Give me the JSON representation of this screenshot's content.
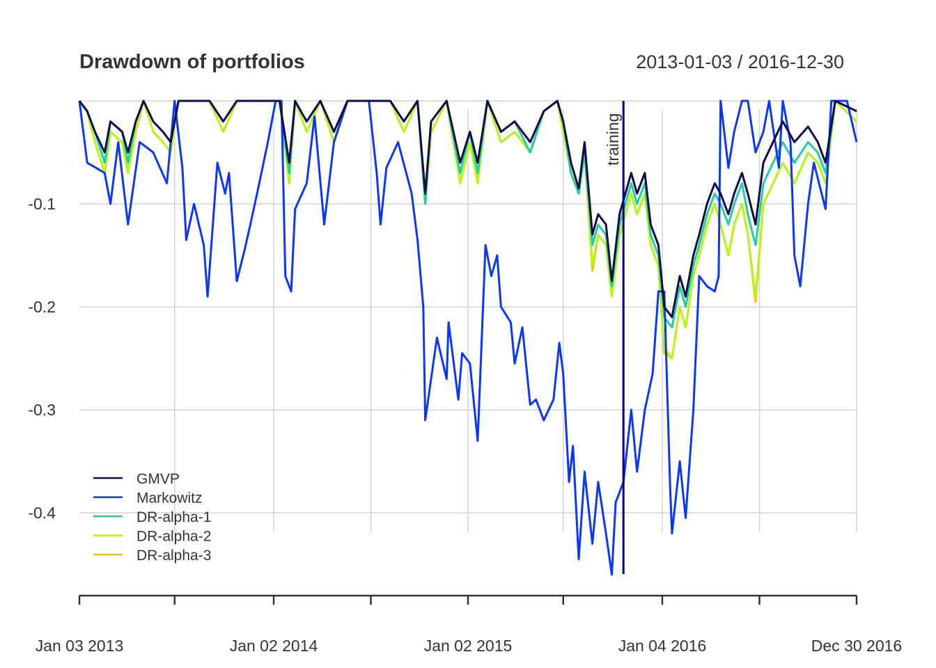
{
  "chart_data": {
    "type": "line",
    "title": "Drawdown of portfolios",
    "date_range": "2013-01-03 / 2016-12-30",
    "xlim": [
      2013.0,
      2017.0
    ],
    "ylim": [
      -0.46,
      0
    ],
    "y_ticks": [
      -0.1,
      -0.2,
      -0.3,
      -0.4
    ],
    "y_tick_labels": [
      "-0.1",
      "-0.2",
      "-0.3",
      "-0.4"
    ],
    "x_ticks": [
      2013.0,
      2014.0,
      2015.0,
      2016.0,
      2017.0
    ],
    "x_tick_labels": [
      "Jan 03 2013",
      "Jan 02 2014",
      "Jan 02 2015",
      "Jan 04 2016",
      "Dec 30 2016"
    ],
    "x_minor_ticks": [
      2013.49,
      2014.5,
      2015.49,
      2016.5
    ],
    "grid": true,
    "legend_position": "bottom-left",
    "annotation": {
      "label": "training",
      "x": 2015.8
    },
    "x_shared": [
      2013.0,
      2013.04,
      2013.08,
      2013.13,
      2013.16,
      2013.22,
      2013.25,
      2013.29,
      2013.33,
      2013.38,
      2013.43,
      2013.47,
      2013.51,
      2013.67,
      2013.74,
      2013.81,
      2014.03,
      2014.08,
      2014.11,
      2014.17,
      2014.24,
      2014.31,
      2014.38,
      2014.6,
      2014.67,
      2014.74,
      2014.78,
      2014.81,
      2014.89,
      2014.96,
      2015.01,
      2015.05,
      2015.1,
      2015.17,
      2015.24,
      2015.32,
      2015.39,
      2015.46,
      2015.49,
      2015.53,
      2015.57,
      2015.6,
      2015.64,
      2015.67,
      2015.71,
      2015.74,
      2015.78,
      2015.84,
      2015.87,
      2015.91,
      2015.94,
      2015.98,
      2016.01,
      2016.05,
      2016.09,
      2016.12,
      2016.16,
      2016.19,
      2016.23,
      2016.27,
      2016.3,
      2016.34,
      2016.37,
      2016.41,
      2016.44,
      2016.48,
      2016.52,
      2016.57,
      2016.62,
      2016.68,
      2016.75,
      2016.8,
      2016.84,
      2016.89,
      2017.0
    ],
    "series": [
      {
        "name": "DR-alpha-3",
        "color": "#f5c400",
        "values": [
          0,
          -0.01,
          -0.04,
          -0.07,
          -0.03,
          -0.04,
          -0.07,
          -0.03,
          0,
          -0.03,
          -0.04,
          -0.05,
          0,
          0,
          -0.03,
          0,
          0,
          -0.08,
          0,
          -0.03,
          0,
          -0.04,
          0,
          0,
          -0.03,
          0,
          -0.1,
          -0.03,
          0,
          -0.08,
          -0.04,
          -0.08,
          0,
          -0.04,
          -0.03,
          -0.05,
          -0.01,
          0,
          -0.03,
          -0.07,
          -0.09,
          -0.05,
          -0.165,
          -0.13,
          -0.14,
          -0.19,
          -0.13,
          -0.09,
          -0.11,
          -0.09,
          -0.14,
          -0.16,
          -0.245,
          -0.25,
          -0.2,
          -0.22,
          -0.17,
          -0.15,
          -0.12,
          -0.1,
          -0.12,
          -0.15,
          -0.12,
          -0.1,
          -0.13,
          -0.195,
          -0.1,
          -0.08,
          -0.06,
          -0.08,
          -0.05,
          -0.06,
          -0.08,
          0,
          -0.02
        ]
      },
      {
        "name": "DR-alpha-2",
        "color": "#b8f516",
        "values": [
          0,
          -0.01,
          -0.04,
          -0.07,
          -0.03,
          -0.04,
          -0.07,
          -0.03,
          0,
          -0.03,
          -0.04,
          -0.05,
          0,
          0,
          -0.03,
          0,
          0,
          -0.08,
          0,
          -0.03,
          0,
          -0.04,
          0,
          0,
          -0.03,
          0,
          -0.1,
          -0.03,
          0,
          -0.08,
          -0.04,
          -0.08,
          0,
          -0.04,
          -0.03,
          -0.05,
          -0.01,
          0,
          -0.03,
          -0.07,
          -0.09,
          -0.05,
          -0.16,
          -0.13,
          -0.14,
          -0.19,
          -0.13,
          -0.09,
          -0.11,
          -0.09,
          -0.14,
          -0.16,
          -0.24,
          -0.25,
          -0.2,
          -0.22,
          -0.17,
          -0.15,
          -0.12,
          -0.1,
          -0.12,
          -0.15,
          -0.12,
          -0.1,
          -0.13,
          -0.19,
          -0.1,
          -0.08,
          -0.06,
          -0.08,
          -0.05,
          -0.06,
          -0.08,
          0,
          -0.02
        ]
      },
      {
        "name": "DR-alpha-1",
        "color": "#1ecfa0",
        "values": [
          0,
          -0.01,
          -0.03,
          -0.06,
          -0.02,
          -0.03,
          -0.06,
          -0.02,
          0,
          -0.02,
          -0.03,
          -0.04,
          0,
          0,
          -0.02,
          0,
          0,
          -0.07,
          0,
          -0.02,
          0,
          -0.03,
          0,
          0,
          -0.02,
          0,
          -0.1,
          -0.02,
          0,
          -0.07,
          -0.03,
          -0.07,
          0,
          -0.03,
          -0.02,
          -0.05,
          -0.01,
          0,
          -0.02,
          -0.07,
          -0.09,
          -0.05,
          -0.14,
          -0.12,
          -0.13,
          -0.18,
          -0.12,
          -0.08,
          -0.1,
          -0.08,
          -0.13,
          -0.15,
          -0.21,
          -0.22,
          -0.18,
          -0.2,
          -0.16,
          -0.14,
          -0.11,
          -0.09,
          -0.1,
          -0.12,
          -0.1,
          -0.08,
          -0.11,
          -0.14,
          -0.08,
          -0.06,
          -0.04,
          -0.06,
          -0.04,
          -0.05,
          -0.07,
          0,
          -0.01
        ]
      },
      {
        "name": "Markowitz",
        "color": "#0a35ff",
        "x": [
          2013.0,
          2013.04,
          2013.13,
          2013.16,
          2013.2,
          2013.25,
          2013.31,
          2013.38,
          2013.45,
          2013.49,
          2013.53,
          2013.55,
          2013.59,
          2013.64,
          2013.66,
          2013.71,
          2013.75,
          2013.77,
          2013.81,
          2013.85,
          2013.88,
          2013.92,
          2013.97,
          2014.01,
          2014.04,
          2014.06,
          2014.09,
          2014.11,
          2014.17,
          2014.21,
          2014.26,
          2014.31,
          2014.38,
          2014.49,
          2014.53,
          2014.55,
          2014.58,
          2014.64,
          2014.71,
          2014.74,
          2014.77,
          2014.78,
          2014.81,
          2014.84,
          2014.89,
          2014.9,
          2014.95,
          2014.97,
          2015.01,
          2015.05,
          2015.09,
          2015.12,
          2015.15,
          2015.17,
          2015.22,
          2015.24,
          2015.28,
          2015.32,
          2015.35,
          2015.39,
          2015.44,
          2015.47,
          2015.49,
          2015.52,
          2015.54,
          2015.57,
          2015.6,
          2015.64,
          2015.67,
          2015.71,
          2015.74,
          2015.76,
          2015.8,
          2015.84,
          2015.87,
          2015.91,
          2015.95,
          2015.98,
          2016.01,
          2016.04,
          2016.05,
          2016.09,
          2016.12,
          2016.16,
          2016.19,
          2016.23,
          2016.27,
          2016.29,
          2016.3,
          2016.34,
          2016.37,
          2016.41,
          2016.44,
          2016.48,
          2016.52,
          2016.55,
          2016.6,
          2016.62,
          2016.66,
          2016.68,
          2016.71,
          2016.75,
          2016.78,
          2016.84,
          2016.87,
          2016.95,
          2017.0
        ],
        "values": [
          0,
          -0.06,
          -0.07,
          -0.1,
          -0.04,
          -0.12,
          -0.04,
          -0.05,
          -0.08,
          0,
          -0.065,
          -0.135,
          -0.1,
          -0.14,
          -0.19,
          -0.06,
          -0.09,
          -0.07,
          -0.175,
          -0.145,
          -0.12,
          -0.085,
          -0.04,
          0,
          0,
          -0.17,
          -0.185,
          -0.105,
          -0.08,
          -0.015,
          -0.12,
          -0.04,
          0,
          0,
          -0.07,
          -0.12,
          -0.065,
          -0.04,
          -0.09,
          -0.135,
          -0.2,
          -0.31,
          -0.27,
          -0.23,
          -0.27,
          -0.215,
          -0.29,
          -0.245,
          -0.255,
          -0.33,
          -0.14,
          -0.17,
          -0.15,
          -0.2,
          -0.215,
          -0.255,
          -0.22,
          -0.295,
          -0.29,
          -0.31,
          -0.29,
          -0.235,
          -0.265,
          -0.37,
          -0.335,
          -0.445,
          -0.36,
          -0.43,
          -0.37,
          -0.42,
          -0.46,
          -0.39,
          -0.37,
          -0.3,
          -0.36,
          -0.3,
          -0.265,
          -0.185,
          -0.185,
          -0.375,
          -0.42,
          -0.35,
          -0.405,
          -0.3,
          -0.17,
          -0.18,
          -0.185,
          -0.17,
          0,
          -0.065,
          -0.03,
          0,
          0,
          -0.05,
          -0.03,
          0,
          -0.065,
          0,
          -0.04,
          -0.15,
          -0.18,
          -0.1,
          -0.06,
          -0.105,
          0,
          0,
          -0.04
        ]
      },
      {
        "name": "GMVP",
        "color": "#0d0a4a",
        "values": [
          0,
          -0.01,
          -0.03,
          -0.05,
          -0.02,
          -0.03,
          -0.05,
          -0.02,
          0,
          -0.02,
          -0.03,
          -0.04,
          0,
          0,
          -0.02,
          0,
          0,
          -0.06,
          0,
          -0.02,
          0,
          -0.03,
          0,
          0,
          -0.02,
          0,
          -0.09,
          -0.02,
          0,
          -0.06,
          -0.03,
          -0.06,
          0,
          -0.03,
          -0.02,
          -0.04,
          -0.01,
          0,
          -0.02,
          -0.06,
          -0.085,
          -0.04,
          -0.13,
          -0.11,
          -0.12,
          -0.175,
          -0.11,
          -0.07,
          -0.09,
          -0.07,
          -0.12,
          -0.14,
          -0.2,
          -0.21,
          -0.17,
          -0.19,
          -0.15,
          -0.13,
          -0.1,
          -0.08,
          -0.09,
          -0.11,
          -0.09,
          -0.07,
          -0.09,
          -0.12,
          -0.06,
          -0.04,
          -0.02,
          -0.04,
          -0.025,
          -0.04,
          -0.06,
          0,
          -0.01
        ]
      }
    ],
    "legend": [
      "GMVP",
      "Markowitz",
      "DR-alpha-1",
      "DR-alpha-2",
      "DR-alpha-3"
    ]
  }
}
